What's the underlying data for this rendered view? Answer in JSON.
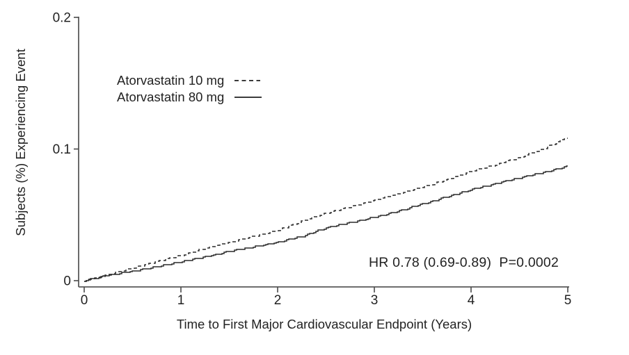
{
  "chart_data": {
    "type": "line",
    "title": "",
    "xlabel": "Time to First Major Cardiovascular Endpoint (Years)",
    "ylabel": "Subjects (%) Experiencing Event",
    "xlim": [
      0,
      5
    ],
    "ylim": [
      0,
      0.2
    ],
    "x_tick_labels": [
      "0",
      "1",
      "2",
      "3",
      "4",
      "5"
    ],
    "x_tick_values": [
      0,
      1,
      2,
      3,
      4,
      5
    ],
    "y_tick_labels": [
      "0",
      "0.1",
      "0.2"
    ],
    "y_tick_values": [
      0,
      0.1,
      0.2
    ],
    "grid": false,
    "legend_position": "inside upper-left",
    "annotation": "HR 0.78 (0.69-0.89)  P=0.0002",
    "x": [
      0,
      0.25,
      0.5,
      0.75,
      1,
      1.25,
      1.5,
      1.75,
      2,
      2.25,
      2.5,
      2.75,
      3,
      3.25,
      3.5,
      3.75,
      4,
      4.25,
      4.5,
      4.75,
      5
    ],
    "series": [
      {
        "name": "Atorvastatin 10 mg",
        "line_style": "dashed",
        "color": "#2a2a2a",
        "values": [
          0,
          0.0045,
          0.0095,
          0.0145,
          0.019,
          0.0245,
          0.029,
          0.0335,
          0.038,
          0.045,
          0.051,
          0.056,
          0.061,
          0.066,
          0.071,
          0.0765,
          0.083,
          0.088,
          0.0935,
          0.1,
          0.109
        ]
      },
      {
        "name": "Atorvastatin 80 mg",
        "line_style": "solid",
        "color": "#2a2a2a",
        "values": [
          0,
          0.004,
          0.007,
          0.0105,
          0.014,
          0.018,
          0.022,
          0.0255,
          0.029,
          0.0335,
          0.04,
          0.044,
          0.048,
          0.053,
          0.058,
          0.0635,
          0.069,
          0.0735,
          0.078,
          0.082,
          0.087
        ]
      }
    ]
  }
}
